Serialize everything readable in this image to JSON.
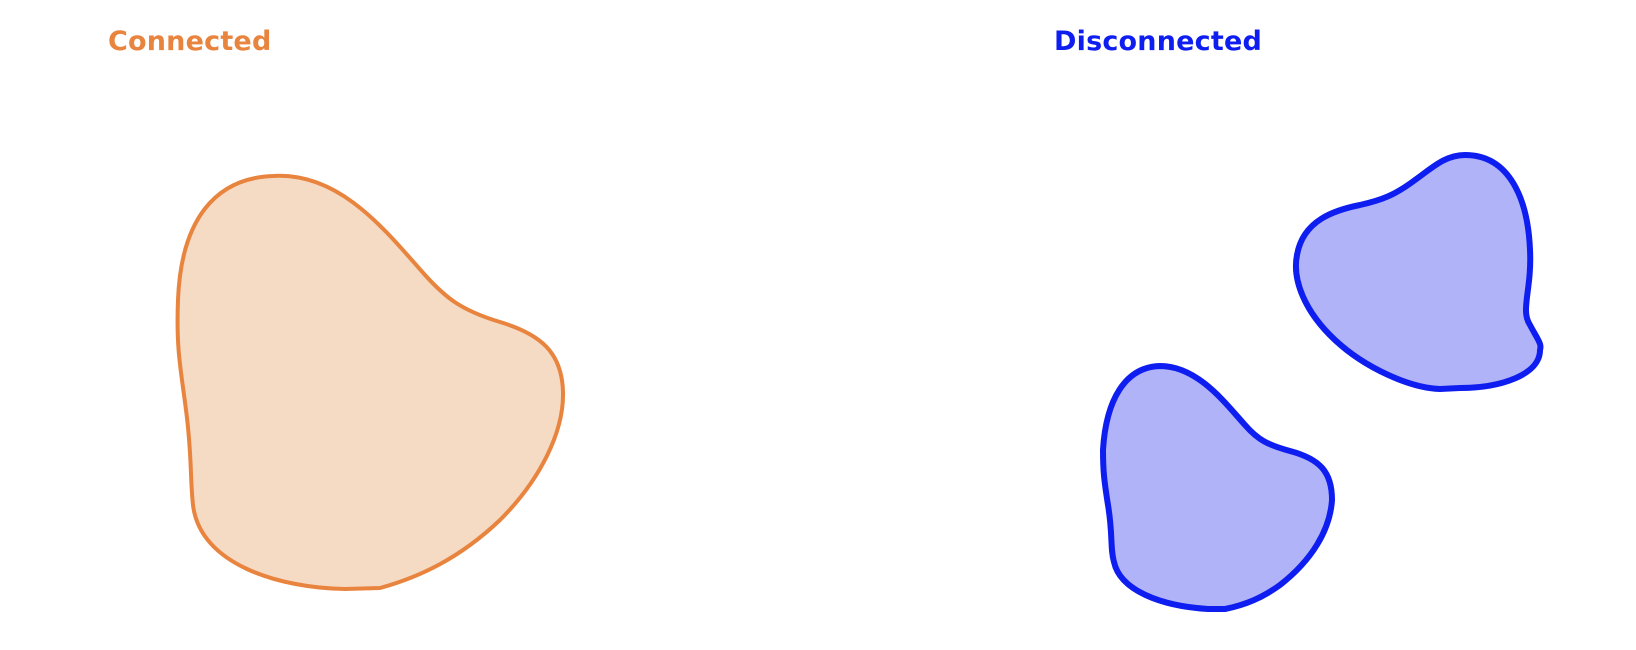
{
  "panels": {
    "connected": {
      "label": "Connected",
      "stroke": "#E8843E",
      "fill": "#F5DAC4"
    },
    "disconnected": {
      "label": "Disconnected",
      "stroke": "#0F1EF0",
      "fill": "#B1B3F8"
    }
  }
}
